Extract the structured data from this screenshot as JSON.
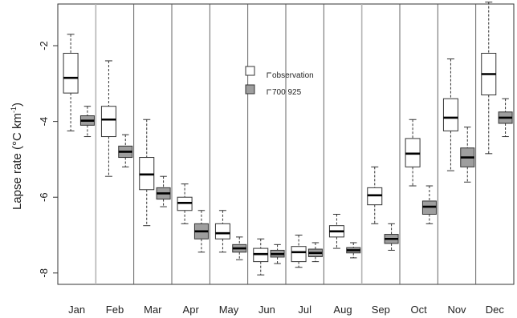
{
  "chart_data": {
    "type": "boxplot",
    "ylabel_main": "Lapse rate  (°C km",
    "ylabel_sup": "-1",
    "ylabel_close": ")",
    "ylim": [
      -8.3,
      -0.9
    ],
    "yticks": [
      -8,
      -6,
      -4,
      -2
    ],
    "ytick_labels": [
      "-8",
      "-6",
      "-4",
      "-2"
    ],
    "categories": [
      "Jan",
      "Feb",
      "Mar",
      "Apr",
      "May",
      "Jun",
      "Jul",
      "Aug",
      "Sep",
      "Oct",
      "Nov",
      "Dec"
    ],
    "legend": {
      "placement": "top-center",
      "obs_label": "observation",
      "model_label": "700  925"
    },
    "series": [
      {
        "name": "observation",
        "fill": "#ffffff",
        "stats": [
          {
            "min": -4.25,
            "q1": -3.25,
            "median": -2.85,
            "q3": -2.2,
            "max": -1.7
          },
          {
            "min": -5.45,
            "q1": -4.4,
            "median": -3.95,
            "q3": -3.6,
            "max": -2.4
          },
          {
            "min": -6.75,
            "q1": -5.8,
            "median": -5.4,
            "q3": -4.95,
            "max": -3.95
          },
          {
            "min": -6.7,
            "q1": -6.35,
            "median": -6.15,
            "q3": -6.0,
            "max": -5.65
          },
          {
            "min": -7.45,
            "q1": -7.1,
            "median": -6.95,
            "q3": -6.7,
            "max": -6.35
          },
          {
            "min": -8.05,
            "q1": -7.7,
            "median": -7.5,
            "q3": -7.35,
            "max": -7.1
          },
          {
            "min": -7.85,
            "q1": -7.7,
            "median": -7.45,
            "q3": -7.3,
            "max": -7.0
          },
          {
            "min": -7.35,
            "q1": -7.05,
            "median": -6.9,
            "q3": -6.75,
            "max": -6.45
          },
          {
            "min": -6.7,
            "q1": -6.2,
            "median": -5.95,
            "q3": -5.75,
            "max": -5.2
          },
          {
            "min": -5.7,
            "q1": -5.2,
            "median": -4.85,
            "q3": -4.45,
            "max": -3.95
          },
          {
            "min": -5.3,
            "q1": -4.25,
            "median": -3.9,
            "q3": -3.4,
            "max": -2.35
          },
          {
            "min": -4.85,
            "q1": -3.3,
            "median": -2.75,
            "q3": -2.2,
            "max": -0.85
          }
        ]
      },
      {
        "name": "700  925",
        "fill": "#9e9e9e",
        "stats": [
          {
            "min": -4.4,
            "q1": -4.1,
            "median": -3.98,
            "q3": -3.85,
            "max": -3.6
          },
          {
            "min": -5.2,
            "q1": -4.95,
            "median": -4.8,
            "q3": -4.65,
            "max": -4.35
          },
          {
            "min": -6.25,
            "q1": -6.05,
            "median": -5.9,
            "q3": -5.75,
            "max": -5.45
          },
          {
            "min": -7.45,
            "q1": -7.1,
            "median": -6.9,
            "q3": -6.7,
            "max": -6.35
          },
          {
            "min": -7.65,
            "q1": -7.45,
            "median": -7.35,
            "q3": -7.25,
            "max": -7.05
          },
          {
            "min": -7.75,
            "q1": -7.58,
            "median": -7.5,
            "q3": -7.4,
            "max": -7.25
          },
          {
            "min": -7.7,
            "q1": -7.57,
            "median": -7.47,
            "q3": -7.37,
            "max": -7.2
          },
          {
            "min": -7.6,
            "q1": -7.47,
            "median": -7.4,
            "q3": -7.33,
            "max": -7.2
          },
          {
            "min": -7.4,
            "q1": -7.22,
            "median": -7.1,
            "q3": -6.98,
            "max": -6.7
          },
          {
            "min": -6.7,
            "q1": -6.45,
            "median": -6.25,
            "q3": -6.1,
            "max": -5.7
          },
          {
            "min": -5.6,
            "q1": -5.2,
            "median": -4.95,
            "q3": -4.7,
            "max": -4.15
          },
          {
            "min": -4.4,
            "q1": -4.05,
            "median": -3.9,
            "q3": -3.75,
            "max": -3.4
          }
        ]
      }
    ]
  }
}
